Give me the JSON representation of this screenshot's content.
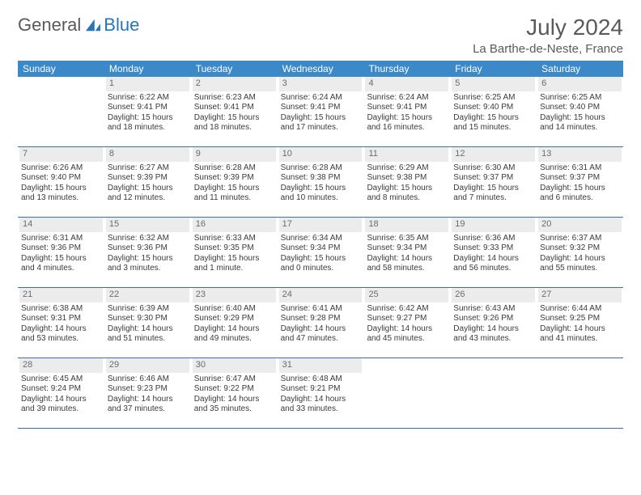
{
  "logo": {
    "text1": "General",
    "text2": "Blue"
  },
  "title": "July 2024",
  "location": "La Barthe-de-Neste, France",
  "daysOfWeek": [
    "Sunday",
    "Monday",
    "Tuesday",
    "Wednesday",
    "Thursday",
    "Friday",
    "Saturday"
  ],
  "colors": {
    "headerBar": "#3b89c9",
    "rowBorder": "#3b6fa8",
    "dayNumBg": "#ececec",
    "logoBlue": "#2a74bb",
    "textGray": "#5a5a5a"
  },
  "weeks": [
    [
      {
        "n": "",
        "sr": "",
        "ss": "",
        "dl1": "",
        "dl2": ""
      },
      {
        "n": "1",
        "sr": "Sunrise: 6:22 AM",
        "ss": "Sunset: 9:41 PM",
        "dl1": "Daylight: 15 hours",
        "dl2": "and 18 minutes."
      },
      {
        "n": "2",
        "sr": "Sunrise: 6:23 AM",
        "ss": "Sunset: 9:41 PM",
        "dl1": "Daylight: 15 hours",
        "dl2": "and 18 minutes."
      },
      {
        "n": "3",
        "sr": "Sunrise: 6:24 AM",
        "ss": "Sunset: 9:41 PM",
        "dl1": "Daylight: 15 hours",
        "dl2": "and 17 minutes."
      },
      {
        "n": "4",
        "sr": "Sunrise: 6:24 AM",
        "ss": "Sunset: 9:41 PM",
        "dl1": "Daylight: 15 hours",
        "dl2": "and 16 minutes."
      },
      {
        "n": "5",
        "sr": "Sunrise: 6:25 AM",
        "ss": "Sunset: 9:40 PM",
        "dl1": "Daylight: 15 hours",
        "dl2": "and 15 minutes."
      },
      {
        "n": "6",
        "sr": "Sunrise: 6:25 AM",
        "ss": "Sunset: 9:40 PM",
        "dl1": "Daylight: 15 hours",
        "dl2": "and 14 minutes."
      }
    ],
    [
      {
        "n": "7",
        "sr": "Sunrise: 6:26 AM",
        "ss": "Sunset: 9:40 PM",
        "dl1": "Daylight: 15 hours",
        "dl2": "and 13 minutes."
      },
      {
        "n": "8",
        "sr": "Sunrise: 6:27 AM",
        "ss": "Sunset: 9:39 PM",
        "dl1": "Daylight: 15 hours",
        "dl2": "and 12 minutes."
      },
      {
        "n": "9",
        "sr": "Sunrise: 6:28 AM",
        "ss": "Sunset: 9:39 PM",
        "dl1": "Daylight: 15 hours",
        "dl2": "and 11 minutes."
      },
      {
        "n": "10",
        "sr": "Sunrise: 6:28 AM",
        "ss": "Sunset: 9:38 PM",
        "dl1": "Daylight: 15 hours",
        "dl2": "and 10 minutes."
      },
      {
        "n": "11",
        "sr": "Sunrise: 6:29 AM",
        "ss": "Sunset: 9:38 PM",
        "dl1": "Daylight: 15 hours",
        "dl2": "and 8 minutes."
      },
      {
        "n": "12",
        "sr": "Sunrise: 6:30 AM",
        "ss": "Sunset: 9:37 PM",
        "dl1": "Daylight: 15 hours",
        "dl2": "and 7 minutes."
      },
      {
        "n": "13",
        "sr": "Sunrise: 6:31 AM",
        "ss": "Sunset: 9:37 PM",
        "dl1": "Daylight: 15 hours",
        "dl2": "and 6 minutes."
      }
    ],
    [
      {
        "n": "14",
        "sr": "Sunrise: 6:31 AM",
        "ss": "Sunset: 9:36 PM",
        "dl1": "Daylight: 15 hours",
        "dl2": "and 4 minutes."
      },
      {
        "n": "15",
        "sr": "Sunrise: 6:32 AM",
        "ss": "Sunset: 9:36 PM",
        "dl1": "Daylight: 15 hours",
        "dl2": "and 3 minutes."
      },
      {
        "n": "16",
        "sr": "Sunrise: 6:33 AM",
        "ss": "Sunset: 9:35 PM",
        "dl1": "Daylight: 15 hours",
        "dl2": "and 1 minute."
      },
      {
        "n": "17",
        "sr": "Sunrise: 6:34 AM",
        "ss": "Sunset: 9:34 PM",
        "dl1": "Daylight: 15 hours",
        "dl2": "and 0 minutes."
      },
      {
        "n": "18",
        "sr": "Sunrise: 6:35 AM",
        "ss": "Sunset: 9:34 PM",
        "dl1": "Daylight: 14 hours",
        "dl2": "and 58 minutes."
      },
      {
        "n": "19",
        "sr": "Sunrise: 6:36 AM",
        "ss": "Sunset: 9:33 PM",
        "dl1": "Daylight: 14 hours",
        "dl2": "and 56 minutes."
      },
      {
        "n": "20",
        "sr": "Sunrise: 6:37 AM",
        "ss": "Sunset: 9:32 PM",
        "dl1": "Daylight: 14 hours",
        "dl2": "and 55 minutes."
      }
    ],
    [
      {
        "n": "21",
        "sr": "Sunrise: 6:38 AM",
        "ss": "Sunset: 9:31 PM",
        "dl1": "Daylight: 14 hours",
        "dl2": "and 53 minutes."
      },
      {
        "n": "22",
        "sr": "Sunrise: 6:39 AM",
        "ss": "Sunset: 9:30 PM",
        "dl1": "Daylight: 14 hours",
        "dl2": "and 51 minutes."
      },
      {
        "n": "23",
        "sr": "Sunrise: 6:40 AM",
        "ss": "Sunset: 9:29 PM",
        "dl1": "Daylight: 14 hours",
        "dl2": "and 49 minutes."
      },
      {
        "n": "24",
        "sr": "Sunrise: 6:41 AM",
        "ss": "Sunset: 9:28 PM",
        "dl1": "Daylight: 14 hours",
        "dl2": "and 47 minutes."
      },
      {
        "n": "25",
        "sr": "Sunrise: 6:42 AM",
        "ss": "Sunset: 9:27 PM",
        "dl1": "Daylight: 14 hours",
        "dl2": "and 45 minutes."
      },
      {
        "n": "26",
        "sr": "Sunrise: 6:43 AM",
        "ss": "Sunset: 9:26 PM",
        "dl1": "Daylight: 14 hours",
        "dl2": "and 43 minutes."
      },
      {
        "n": "27",
        "sr": "Sunrise: 6:44 AM",
        "ss": "Sunset: 9:25 PM",
        "dl1": "Daylight: 14 hours",
        "dl2": "and 41 minutes."
      }
    ],
    [
      {
        "n": "28",
        "sr": "Sunrise: 6:45 AM",
        "ss": "Sunset: 9:24 PM",
        "dl1": "Daylight: 14 hours",
        "dl2": "and 39 minutes."
      },
      {
        "n": "29",
        "sr": "Sunrise: 6:46 AM",
        "ss": "Sunset: 9:23 PM",
        "dl1": "Daylight: 14 hours",
        "dl2": "and 37 minutes."
      },
      {
        "n": "30",
        "sr": "Sunrise: 6:47 AM",
        "ss": "Sunset: 9:22 PM",
        "dl1": "Daylight: 14 hours",
        "dl2": "and 35 minutes."
      },
      {
        "n": "31",
        "sr": "Sunrise: 6:48 AM",
        "ss": "Sunset: 9:21 PM",
        "dl1": "Daylight: 14 hours",
        "dl2": "and 33 minutes."
      },
      {
        "n": "",
        "sr": "",
        "ss": "",
        "dl1": "",
        "dl2": ""
      },
      {
        "n": "",
        "sr": "",
        "ss": "",
        "dl1": "",
        "dl2": ""
      },
      {
        "n": "",
        "sr": "",
        "ss": "",
        "dl1": "",
        "dl2": ""
      }
    ]
  ]
}
